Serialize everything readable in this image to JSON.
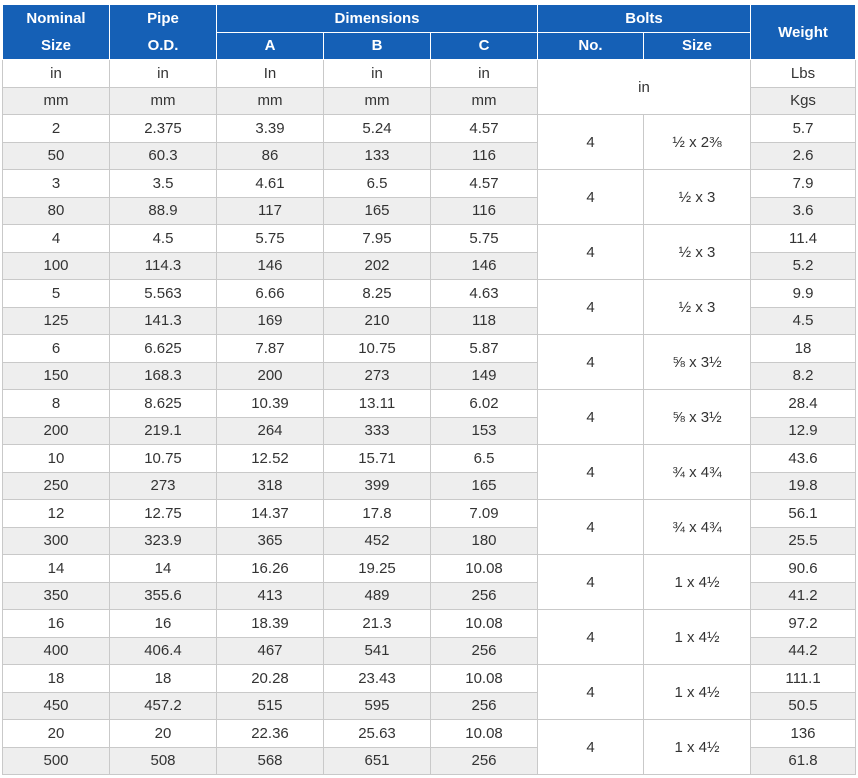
{
  "header": {
    "nominal_size": [
      "Nominal",
      "Size"
    ],
    "pipe_od": [
      "Pipe",
      "O.D."
    ],
    "dimensions": "Dimensions",
    "dim_a": "A",
    "dim_b": "B",
    "dim_c": "C",
    "bolts": "Bolts",
    "bolts_no": "No.",
    "bolts_size": "Size",
    "weight": "Weight"
  },
  "units": {
    "imperial": [
      "in",
      "in",
      "In",
      "in",
      "in"
    ],
    "metric": [
      "mm",
      "mm",
      "mm",
      "mm",
      "mm"
    ],
    "bolt_unit": "in",
    "weight_imperial": "Lbs",
    "weight_metric": "Kgs"
  },
  "rows": [
    {
      "in": [
        "2",
        "2.375",
        "3.39",
        "5.24",
        "4.57"
      ],
      "mm": [
        "50",
        "60.3",
        "86",
        "133",
        "116"
      ],
      "bolt_no": "4",
      "bolt_size": "½ x 2⅜",
      "lbs": "5.7",
      "kgs": "2.6"
    },
    {
      "in": [
        "3",
        "3.5",
        "4.61",
        "6.5",
        "4.57"
      ],
      "mm": [
        "80",
        "88.9",
        "117",
        "165",
        "116"
      ],
      "bolt_no": "4",
      "bolt_size": "½ x 3",
      "lbs": "7.9",
      "kgs": "3.6"
    },
    {
      "in": [
        "4",
        "4.5",
        "5.75",
        "7.95",
        "5.75"
      ],
      "mm": [
        "100",
        "114.3",
        "146",
        "202",
        "146"
      ],
      "bolt_no": "4",
      "bolt_size": "½ x 3",
      "lbs": "11.4",
      "kgs": "5.2"
    },
    {
      "in": [
        "5",
        "5.563",
        "6.66",
        "8.25",
        "4.63"
      ],
      "mm": [
        "125",
        "141.3",
        "169",
        "210",
        "118"
      ],
      "bolt_no": "4",
      "bolt_size": "½ x 3",
      "lbs": "9.9",
      "kgs": "4.5"
    },
    {
      "in": [
        "6",
        "6.625",
        "7.87",
        "10.75",
        "5.87"
      ],
      "mm": [
        "150",
        "168.3",
        "200",
        "273",
        "149"
      ],
      "bolt_no": "4",
      "bolt_size": "⅝ x 3½",
      "lbs": "18",
      "kgs": "8.2"
    },
    {
      "in": [
        "8",
        "8.625",
        "10.39",
        "13.11",
        "6.02"
      ],
      "mm": [
        "200",
        "219.1",
        "264",
        "333",
        "153"
      ],
      "bolt_no": "4",
      "bolt_size": "⅝ x 3½",
      "lbs": "28.4",
      "kgs": "12.9"
    },
    {
      "in": [
        "10",
        "10.75",
        "12.52",
        "15.71",
        "6.5"
      ],
      "mm": [
        "250",
        "273",
        "318",
        "399",
        "165"
      ],
      "bolt_no": "4",
      "bolt_size": "¾ x 4¾",
      "lbs": "43.6",
      "kgs": "19.8"
    },
    {
      "in": [
        "12",
        "12.75",
        "14.37",
        "17.8",
        "7.09"
      ],
      "mm": [
        "300",
        "323.9",
        "365",
        "452",
        "180"
      ],
      "bolt_no": "4",
      "bolt_size": "¾ x 4¾",
      "lbs": "56.1",
      "kgs": "25.5"
    },
    {
      "in": [
        "14",
        "14",
        "16.26",
        "19.25",
        "10.08"
      ],
      "mm": [
        "350",
        "355.6",
        "413",
        "489",
        "256"
      ],
      "bolt_no": "4",
      "bolt_size": "1 x 4½",
      "lbs": "90.6",
      "kgs": "41.2"
    },
    {
      "in": [
        "16",
        "16",
        "18.39",
        "21.3",
        "10.08"
      ],
      "mm": [
        "400",
        "406.4",
        "467",
        "541",
        "256"
      ],
      "bolt_no": "4",
      "bolt_size": "1 x 4½",
      "lbs": "97.2",
      "kgs": "44.2"
    },
    {
      "in": [
        "18",
        "18",
        "20.28",
        "23.43",
        "10.08"
      ],
      "mm": [
        "450",
        "457.2",
        "515",
        "595",
        "256"
      ],
      "bolt_no": "4",
      "bolt_size": "1 x 4½",
      "lbs": "111.1",
      "kgs": "50.5"
    },
    {
      "in": [
        "20",
        "20",
        "22.36",
        "25.63",
        "10.08"
      ],
      "mm": [
        "500",
        "508",
        "568",
        "651",
        "256"
      ],
      "bolt_no": "4",
      "bolt_size": "1 x 4½",
      "lbs": "136",
      "kgs": "61.8"
    }
  ]
}
